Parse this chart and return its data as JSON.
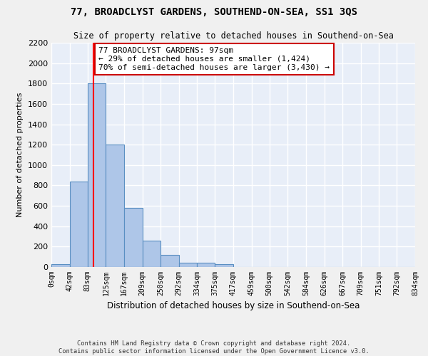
{
  "title": "77, BROADCLYST GARDENS, SOUTHEND-ON-SEA, SS1 3QS",
  "subtitle": "Size of property relative to detached houses in Southend-on-Sea",
  "xlabel": "Distribution of detached houses by size in Southend-on-Sea",
  "ylabel": "Number of detached properties",
  "bar_edges": [
    0,
    42,
    83,
    125,
    167,
    209,
    250,
    292,
    334,
    375,
    417,
    459,
    500,
    542,
    584,
    626,
    667,
    709,
    751,
    792,
    834
  ],
  "bar_heights": [
    25,
    840,
    1800,
    1200,
    580,
    255,
    120,
    45,
    45,
    25,
    0,
    0,
    0,
    0,
    0,
    0,
    0,
    0,
    0,
    0
  ],
  "bar_color": "#aec6e8",
  "bar_edge_color": "#5a8fc2",
  "red_line_x": 97,
  "ylim": [
    0,
    2200
  ],
  "yticks": [
    0,
    200,
    400,
    600,
    800,
    1000,
    1200,
    1400,
    1600,
    1800,
    2000,
    2200
  ],
  "annotation_text": "77 BROADCLYST GARDENS: 97sqm\n← 29% of detached houses are smaller (1,424)\n70% of semi-detached houses are larger (3,430) →",
  "annotation_box_color": "#ffffff",
  "annotation_box_edge_color": "#cc0000",
  "footer_line1": "Contains HM Land Registry data © Crown copyright and database right 2024.",
  "footer_line2": "Contains public sector information licensed under the Open Government Licence v3.0.",
  "bg_color": "#e8eef8",
  "grid_color": "#ffffff",
  "fig_bg_color": "#f0f0f0",
  "tick_labels": [
    "0sqm",
    "42sqm",
    "83sqm",
    "125sqm",
    "167sqm",
    "209sqm",
    "250sqm",
    "292sqm",
    "334sqm",
    "375sqm",
    "417sqm",
    "459sqm",
    "500sqm",
    "542sqm",
    "584sqm",
    "626sqm",
    "667sqm",
    "709sqm",
    "751sqm",
    "792sqm",
    "834sqm"
  ]
}
